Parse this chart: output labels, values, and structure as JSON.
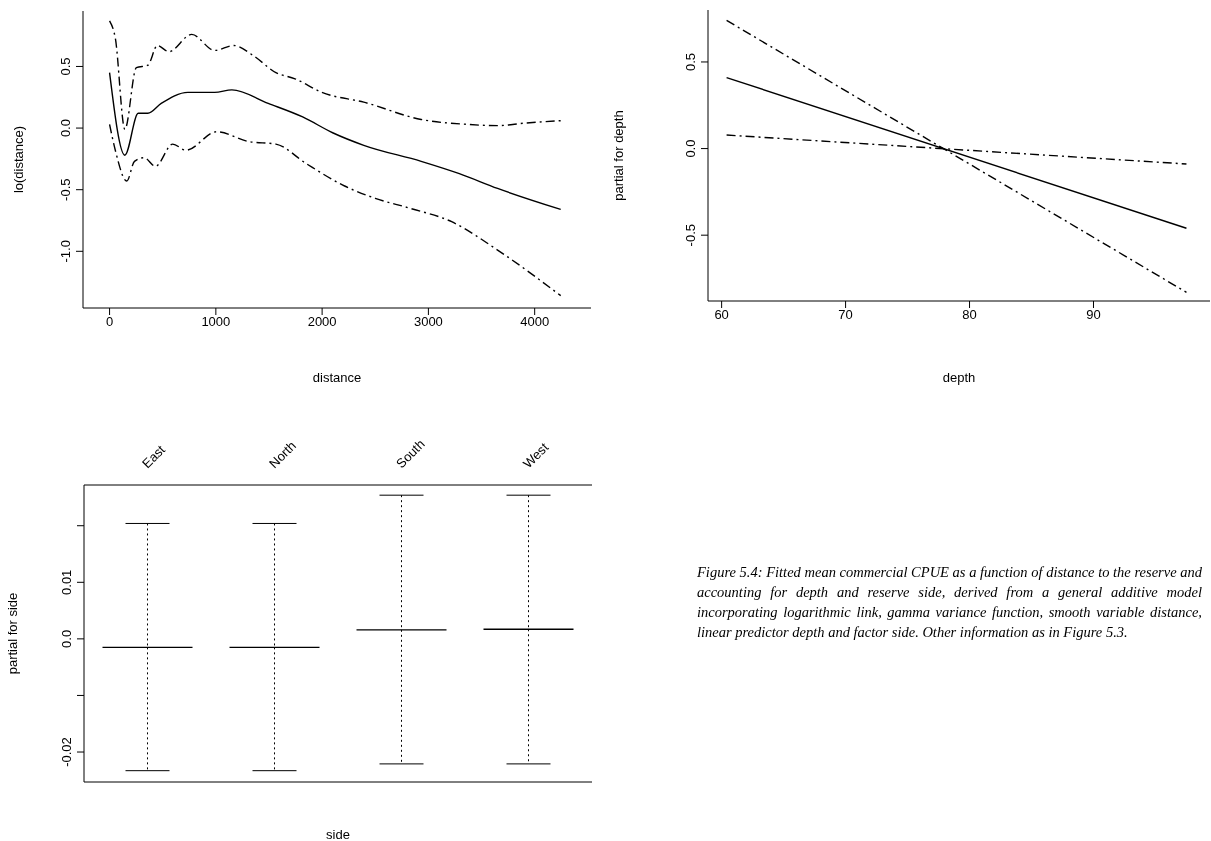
{
  "chart_data": [
    {
      "type": "line",
      "xlabel": "distance",
      "ylabel": "lo(distance)",
      "xlim": [
        -250,
        4530
      ],
      "ylim": [
        -1.46,
        0.95
      ],
      "xticks": [
        0,
        1000,
        2000,
        3000,
        4000
      ],
      "yticks": [
        {
          "value": -1,
          "label": "-1.0"
        },
        -0.5,
        {
          "value": 0,
          "label": "0.0"
        },
        0.5
      ],
      "series": [
        {
          "color": "#000000",
          "line_style": "solid",
          "x": [
            0,
            144,
            270,
            360,
            486,
            737,
            989,
            1151,
            1493,
            1817,
            2104,
            2392,
            2932,
            3291,
            3651,
            4245
          ],
          "values": [
            0.45,
            -0.22,
            0.12,
            0.12,
            0.2,
            0.29,
            0.29,
            0.31,
            0.2,
            0.09,
            -0.04,
            -0.14,
            -0.27,
            -0.37,
            -0.49,
            -0.66
          ]
        },
        {
          "color": "#000000",
          "line_style": "dashed",
          "x": [
            0,
            54,
            144,
            252,
            360,
            450,
            558,
            773,
            989,
            1169,
            1349,
            1565,
            1745,
            1996,
            2392,
            2932,
            3363,
            3651,
            3903,
            4245
          ],
          "values": [
            0.87,
            0.73,
            -0.01,
            0.49,
            0.51,
            0.67,
            0.62,
            0.76,
            0.63,
            0.67,
            0.59,
            0.45,
            0.4,
            0.29,
            0.21,
            0.07,
            0.03,
            0.02,
            0.04,
            0.06
          ]
        },
        {
          "color": "#000000",
          "line_style": "dashed",
          "x": [
            0,
            54,
            162,
            234,
            324,
            432,
            594,
            719,
            1007,
            1313,
            1565,
            1853,
            2212,
            2500,
            2824,
            3219,
            3651,
            4245
          ],
          "values": [
            0.03,
            -0.18,
            -0.43,
            -0.27,
            -0.24,
            -0.31,
            -0.13,
            -0.18,
            -0.03,
            -0.11,
            -0.13,
            -0.29,
            -0.47,
            -0.57,
            -0.65,
            -0.76,
            -0.99,
            -1.36
          ]
        }
      ]
    },
    {
      "type": "line",
      "xlabel": "depth",
      "ylabel": "partial for depth",
      "xlim": [
        58.9,
        99.4
      ],
      "ylim": [
        -0.88,
        0.8
      ],
      "xticks": [
        60,
        70,
        80,
        90
      ],
      "yticks": [
        -0.5,
        {
          "value": 0,
          "label": "0.0"
        },
        0.5
      ],
      "series": [
        {
          "color": "#000000",
          "line_style": "solid",
          "x": [
            60.4,
            97.5
          ],
          "values": [
            0.41,
            -0.46
          ]
        },
        {
          "color": "#000000",
          "line_style": "dashed",
          "x": [
            60.4,
            97.5
          ],
          "values": [
            0.74,
            -0.83
          ]
        },
        {
          "color": "#000000",
          "line_style": "dashed",
          "x": [
            60.4,
            97.5
          ],
          "values": [
            0.078,
            -0.089
          ]
        }
      ]
    },
    {
      "type": "box",
      "xlabel": "side",
      "ylabel": "partial for side",
      "categories": [
        "East",
        "North",
        "South",
        "West"
      ],
      "ylim": [
        -0.0253,
        0.0272
      ],
      "yticks": [
        {
          "value": -0.02,
          "label": "-0.02"
        },
        {
          "value": -0.01,
          "label": null
        },
        {
          "value": 0,
          "label": "0.0"
        },
        0.01,
        {
          "value": 0.02,
          "label": null
        }
      ],
      "boxes": [
        {
          "low": -0.0233,
          "q1": -0.0015,
          "median": -0.0015,
          "q3": -0.0015,
          "high": 0.0204
        },
        {
          "low": -0.0233,
          "q1": -0.0015,
          "median": -0.0015,
          "q3": -0.0015,
          "high": 0.0204
        },
        {
          "low": -0.0221,
          "q1": 0.0016,
          "median": 0.0016,
          "q3": 0.0016,
          "high": 0.0254
        },
        {
          "low": -0.0221,
          "q1": 0.0017,
          "median": 0.0017,
          "q3": 0.0017,
          "high": 0.0254
        }
      ],
      "annotations": [
        "Figure 5.4: Fitted mean commercial CPUE as a function of distance to the reserve and accounting for depth and reserve side, derived from a general additive model incorporating logarithmic link, gamma variance function, smooth variable distance, linear predictor depth and factor side. Other information as in Figure 5.3."
      ]
    }
  ]
}
